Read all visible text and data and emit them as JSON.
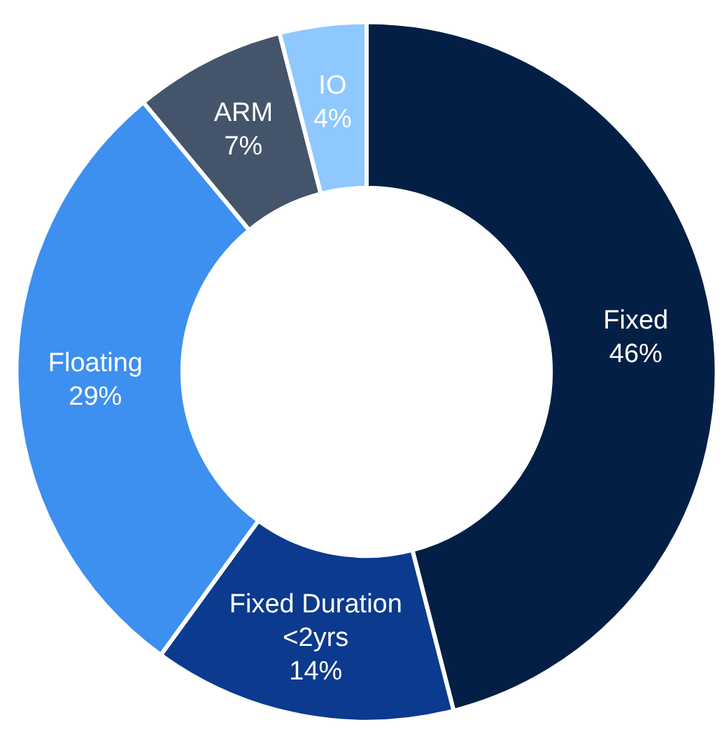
{
  "chart_data": {
    "type": "donut",
    "categories": [
      "Fixed",
      "Fixed Duration\n<2yrs",
      "Floating",
      "ARM",
      "IO"
    ],
    "values": [
      46,
      14,
      29,
      7,
      4
    ],
    "value_labels": [
      "46%",
      "14%",
      "29%",
      "7%",
      "4%"
    ],
    "colors": [
      "#041f45",
      "#0b3a8e",
      "#3d8ff0",
      "#44546a",
      "#8ec8ff"
    ],
    "legend": false
  }
}
